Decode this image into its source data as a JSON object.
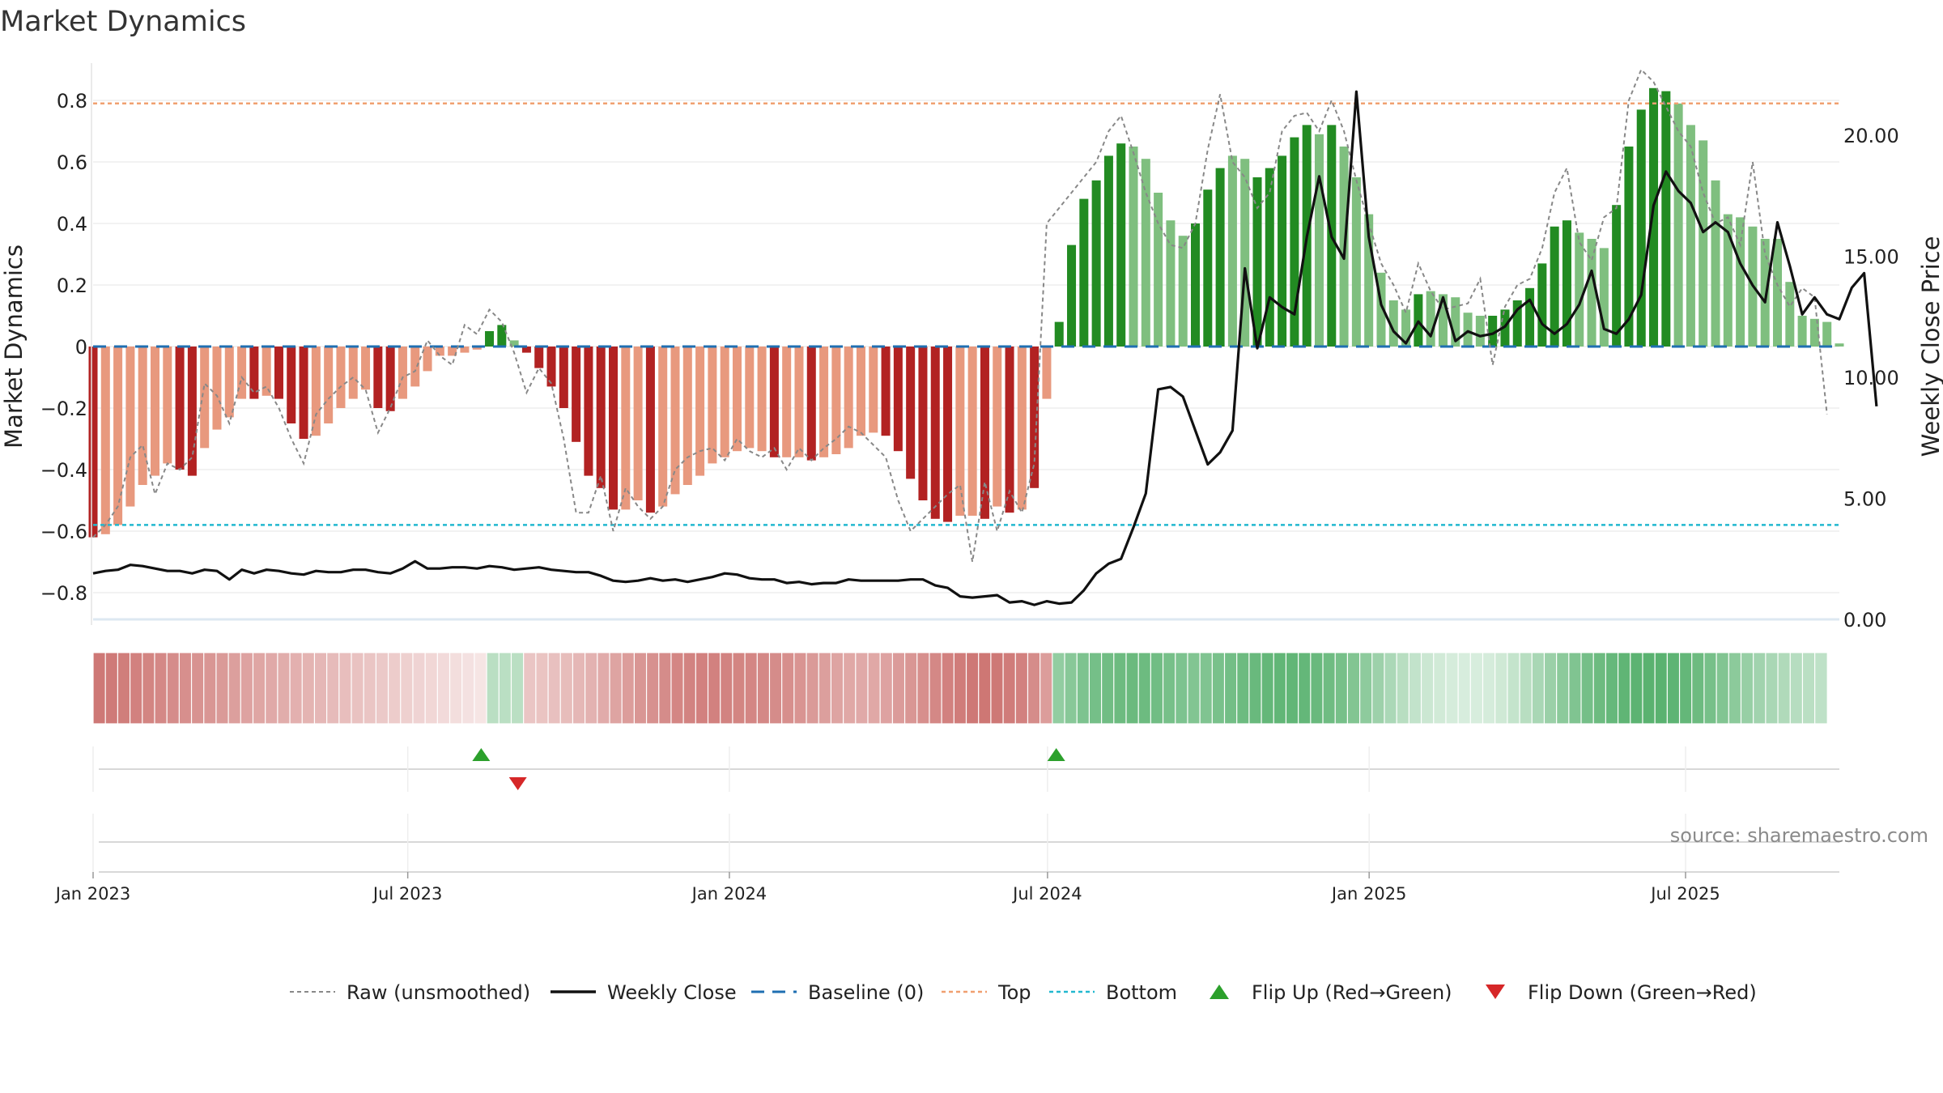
{
  "chart_data": {
    "type": "bar",
    "title": "Market Dynamics",
    "ylabel_left": "Market Dynamics",
    "ylabel_right": "Weekly Close Price",
    "ylim_left": [
      -0.88,
      0.94
    ],
    "ylim_right": [
      0,
      24.7
    ],
    "yticks_left": [
      0.8,
      0.6,
      0.4,
      0.2,
      0,
      -0.2,
      -0.4,
      -0.6,
      -0.8
    ],
    "ytick_labels_left": [
      "0.8",
      "0.6",
      "0.4",
      "0.2",
      "0",
      "−0.2",
      "−0.4",
      "−0.6",
      "−0.8"
    ],
    "yticks_right": [
      20,
      15,
      10,
      5,
      0
    ],
    "ytick_labels_right": [
      "20.00",
      "15.00",
      "10.00",
      "5.00",
      "0.00"
    ],
    "x_ticks": [
      {
        "label": "Jan 2023",
        "date": "2023-01-02"
      },
      {
        "label": "Jul 2023",
        "date": "2023-07-01"
      },
      {
        "label": "Jan 2024",
        "date": "2024-01-01"
      },
      {
        "label": "Jul 2024",
        "date": "2024-07-01"
      },
      {
        "label": "Jan 2025",
        "date": "2025-01-01"
      },
      {
        "label": "Jul 2025",
        "date": "2025-07-01"
      }
    ],
    "x_start": "2023-01-02",
    "x_end": "2025-09-27",
    "bar_interval_days": 7,
    "top_threshold": 0.79,
    "bottom_threshold": -0.58,
    "baseline": 0,
    "colors": {
      "red_dark": "#b22222",
      "red_light": "#e8997e",
      "green_dark": "#228b22",
      "green_light": "#7fbf7f",
      "raw": "#888888",
      "close": "#111111",
      "baseline": "#1f6fb2",
      "top": "#f0a070",
      "bottom": "#22b8cf",
      "flip_up": "#2ca02c",
      "flip_down": "#d62728"
    },
    "bar_values": [
      -0.62,
      -0.61,
      -0.58,
      -0.52,
      -0.45,
      -0.42,
      -0.38,
      -0.4,
      -0.42,
      -0.33,
      -0.27,
      -0.23,
      -0.17,
      -0.17,
      -0.16,
      -0.17,
      -0.25,
      -0.3,
      -0.29,
      -0.25,
      -0.2,
      -0.17,
      -0.14,
      -0.2,
      -0.21,
      -0.17,
      -0.13,
      -0.08,
      -0.03,
      -0.03,
      -0.02,
      -0.01,
      0.05,
      0.07,
      0.02,
      -0.02,
      -0.07,
      -0.13,
      -0.2,
      -0.31,
      -0.42,
      -0.46,
      -0.53,
      -0.53,
      -0.5,
      -0.54,
      -0.52,
      -0.48,
      -0.45,
      -0.42,
      -0.38,
      -0.36,
      -0.34,
      -0.33,
      -0.34,
      -0.36,
      -0.36,
      -0.36,
      -0.37,
      -0.36,
      -0.35,
      -0.33,
      -0.29,
      -0.28,
      -0.29,
      -0.34,
      -0.43,
      -0.5,
      -0.56,
      -0.57,
      -0.55,
      -0.55,
      -0.56,
      -0.52,
      -0.54,
      -0.53,
      -0.46,
      -0.17,
      0.08,
      0.33,
      0.48,
      0.54,
      0.62,
      0.66,
      0.65,
      0.61,
      0.5,
      0.41,
      0.36,
      0.4,
      0.51,
      0.58,
      0.62,
      0.61,
      0.55,
      0.58,
      0.62,
      0.68,
      0.72,
      0.69,
      0.72,
      0.65,
      0.55,
      0.43,
      0.24,
      0.15,
      0.12,
      0.17,
      0.18,
      0.17,
      0.16,
      0.11,
      0.1,
      0.1,
      0.12,
      0.15,
      0.19,
      0.27,
      0.39,
      0.41,
      0.37,
      0.35,
      0.32,
      0.46,
      0.65,
      0.77,
      0.84,
      0.83,
      0.79,
      0.72,
      0.67,
      0.54,
      0.43,
      0.42,
      0.39,
      0.35,
      0.35,
      0.21,
      0.1,
      0.09,
      0.08,
      0.01
    ],
    "bar_shades": [
      "d",
      "l",
      "l",
      "l",
      "l",
      "l",
      "l",
      "d",
      "d",
      "l",
      "l",
      "l",
      "l",
      "d",
      "l",
      "d",
      "d",
      "d",
      "l",
      "l",
      "l",
      "l",
      "l",
      "d",
      "d",
      "l",
      "l",
      "l",
      "l",
      "l",
      "l",
      "l",
      "d",
      "d",
      "l",
      "d",
      "d",
      "d",
      "d",
      "d",
      "d",
      "d",
      "d",
      "l",
      "l",
      "d",
      "l",
      "l",
      "l",
      "l",
      "l",
      "l",
      "l",
      "l",
      "l",
      "d",
      "l",
      "l",
      "d",
      "l",
      "l",
      "l",
      "l",
      "l",
      "d",
      "d",
      "d",
      "d",
      "d",
      "d",
      "l",
      "l",
      "d",
      "l",
      "d",
      "l",
      "d",
      "l",
      "d",
      "d",
      "d",
      "d",
      "d",
      "d",
      "l",
      "l",
      "l",
      "l",
      "l",
      "d",
      "d",
      "d",
      "l",
      "l",
      "d",
      "d",
      "d",
      "d",
      "d",
      "l",
      "d",
      "l",
      "l",
      "l",
      "l",
      "l",
      "l",
      "d",
      "l",
      "l",
      "l",
      "l",
      "l",
      "d",
      "d",
      "d",
      "d",
      "d",
      "d",
      "d",
      "l",
      "l",
      "l",
      "d",
      "d",
      "d",
      "d",
      "d",
      "l",
      "l",
      "l",
      "l",
      "l",
      "l",
      "l",
      "l",
      "l",
      "l",
      "l",
      "l",
      "l"
    ],
    "raw_values": [
      -0.62,
      -0.58,
      -0.52,
      -0.36,
      -0.32,
      -0.48,
      -0.38,
      -0.4,
      -0.36,
      -0.12,
      -0.16,
      -0.25,
      -0.1,
      -0.15,
      -0.13,
      -0.2,
      -0.3,
      -0.38,
      -0.22,
      -0.17,
      -0.13,
      -0.1,
      -0.14,
      -0.28,
      -0.2,
      -0.1,
      -0.08,
      0.02,
      -0.03,
      -0.06,
      0.07,
      0.04,
      0.12,
      0.08,
      -0.02,
      -0.15,
      -0.07,
      -0.12,
      -0.3,
      -0.54,
      -0.54,
      -0.42,
      -0.6,
      -0.46,
      -0.52,
      -0.56,
      -0.52,
      -0.4,
      -0.36,
      -0.34,
      -0.33,
      -0.37,
      -0.3,
      -0.34,
      -0.36,
      -0.33,
      -0.4,
      -0.33,
      -0.37,
      -0.33,
      -0.3,
      -0.26,
      -0.28,
      -0.32,
      -0.36,
      -0.5,
      -0.6,
      -0.56,
      -0.52,
      -0.48,
      -0.45,
      -0.7,
      -0.44,
      -0.6,
      -0.47,
      -0.54,
      -0.38,
      0.4,
      0.45,
      0.5,
      0.55,
      0.6,
      0.7,
      0.75,
      0.63,
      0.5,
      0.4,
      0.33,
      0.32,
      0.4,
      0.64,
      0.82,
      0.6,
      0.55,
      0.45,
      0.5,
      0.7,
      0.75,
      0.76,
      0.7,
      0.8,
      0.7,
      0.54,
      0.4,
      0.27,
      0.2,
      0.11,
      0.27,
      0.18,
      0.12,
      0.13,
      0.14,
      0.22,
      -0.06,
      0.13,
      0.2,
      0.22,
      0.32,
      0.5,
      0.58,
      0.34,
      0.28,
      0.42,
      0.45,
      0.8,
      0.9,
      0.86,
      0.78,
      0.7,
      0.65,
      0.5,
      0.4,
      0.42,
      0.33,
      0.6,
      0.3,
      0.2,
      0.13,
      0.19,
      0.16,
      -0.22
    ],
    "close_values": [
      1.9,
      2.0,
      2.05,
      2.25,
      2.2,
      2.1,
      2.0,
      2.0,
      1.9,
      2.05,
      2.0,
      1.65,
      2.05,
      1.9,
      2.05,
      2.0,
      1.9,
      1.85,
      2.0,
      1.95,
      1.95,
      2.05,
      2.05,
      1.95,
      1.9,
      2.1,
      2.4,
      2.1,
      2.1,
      2.15,
      2.15,
      2.1,
      2.2,
      2.15,
      2.05,
      2.1,
      2.15,
      2.05,
      2.0,
      1.95,
      1.95,
      1.8,
      1.6,
      1.55,
      1.6,
      1.7,
      1.6,
      1.65,
      1.55,
      1.65,
      1.75,
      1.9,
      1.85,
      1.7,
      1.65,
      1.65,
      1.5,
      1.55,
      1.45,
      1.5,
      1.5,
      1.65,
      1.6,
      1.6,
      1.6,
      1.6,
      1.65,
      1.65,
      1.4,
      1.3,
      0.95,
      0.9,
      0.95,
      1.0,
      0.7,
      0.75,
      0.6,
      0.75,
      0.65,
      0.7,
      1.2,
      1.9,
      2.3,
      2.5,
      3.8,
      5.2,
      9.5,
      9.6,
      9.2,
      7.8,
      6.4,
      6.9,
      7.8,
      14.5,
      11.2,
      13.3,
      12.9,
      12.6,
      15.8,
      18.3,
      15.8,
      14.9,
      21.8,
      15.8,
      13.0,
      11.9,
      11.4,
      12.3,
      11.7,
      13.3,
      11.5,
      11.9,
      11.7,
      11.8,
      12.1,
      12.8,
      13.2,
      12.2,
      11.8,
      12.2,
      13.0,
      14.4,
      12.0,
      11.8,
      12.4,
      13.4,
      17.1,
      18.5,
      17.7,
      17.2,
      16.0,
      16.4,
      16.0,
      14.7,
      13.8,
      13.1,
      16.4,
      14.6,
      12.6,
      13.3,
      12.6,
      12.4,
      13.7,
      14.3,
      8.8
    ],
    "heatmap_levels": [
      0.77,
      0.76,
      0.74,
      0.72,
      0.7,
      0.68,
      0.66,
      0.64,
      0.62,
      0.6,
      0.58,
      0.55,
      0.53,
      0.51,
      0.49,
      0.47,
      0.45,
      0.43,
      0.41,
      0.39,
      0.37,
      0.35,
      0.33,
      0.31,
      0.29,
      0.27,
      0.25,
      0.23,
      0.21,
      0.19,
      0.17,
      0.15,
      0.33,
      0.33,
      0.33,
      0.33,
      0.34,
      0.36,
      0.38,
      0.41,
      0.44,
      0.48,
      0.52,
      0.56,
      0.6,
      0.63,
      0.66,
      0.69,
      0.71,
      0.72,
      0.72,
      0.71,
      0.7,
      0.69,
      0.68,
      0.66,
      0.64,
      0.61,
      0.58,
      0.55,
      0.52,
      0.5,
      0.49,
      0.5,
      0.53,
      0.57,
      0.6,
      0.64,
      0.68,
      0.72,
      0.75,
      0.77,
      0.78,
      0.77,
      0.75,
      0.72,
      0.66,
      0.56,
      0.52,
      0.57,
      0.62,
      0.66,
      0.68,
      0.7,
      0.71,
      0.7,
      0.68,
      0.65,
      0.62,
      0.6,
      0.61,
      0.64,
      0.67,
      0.7,
      0.72,
      0.74,
      0.75,
      0.75,
      0.74,
      0.72,
      0.69,
      0.65,
      0.6,
      0.54,
      0.47,
      0.4,
      0.34,
      0.29,
      0.25,
      0.22,
      0.2,
      0.19,
      0.19,
      0.2,
      0.23,
      0.28,
      0.34,
      0.41,
      0.48,
      0.55,
      0.61,
      0.66,
      0.7,
      0.73,
      0.76,
      0.78,
      0.79,
      0.79,
      0.77,
      0.74,
      0.7,
      0.65,
      0.6,
      0.55,
      0.5,
      0.45,
      0.41,
      0.38,
      0.35,
      0.33,
      0.31
    ],
    "flips_up": [
      "2023-08-12",
      "2024-07-06"
    ],
    "flips_down": [
      "2023-09-02"
    ],
    "legend_position": "bottom-center",
    "legend": [
      {
        "key": "raw",
        "label": "Raw (unsmoothed)"
      },
      {
        "key": "close",
        "label": "Weekly Close"
      },
      {
        "key": "baseline",
        "label": "Baseline (0)"
      },
      {
        "key": "top",
        "label": "Top"
      },
      {
        "key": "bottom",
        "label": "Bottom"
      },
      {
        "key": "flip_up",
        "label": "Flip Up (Red→Green)"
      },
      {
        "key": "flip_down",
        "label": "Flip Down (Green→Red)"
      }
    ],
    "source_text": "source: sharemaestro.com"
  }
}
